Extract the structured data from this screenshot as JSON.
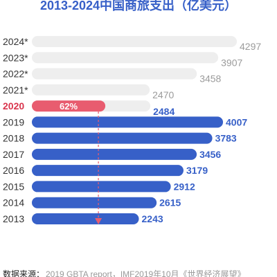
{
  "chart_data": {
    "type": "bar",
    "orientation": "horizontal",
    "title": "2013-2024中国商旅支出（亿美元）",
    "categories": [
      "2024*",
      "2023*",
      "2022*",
      "2021*",
      "2020",
      "2019",
      "2018",
      "2017",
      "2016",
      "2015",
      "2014",
      "2013"
    ],
    "values": [
      4297,
      3907,
      3458,
      2470,
      2484,
      4007,
      3783,
      3456,
      3179,
      2912,
      2615,
      2243
    ],
    "value_labels": [
      "4297",
      "3907",
      "3458",
      "2470",
      "2484",
      "4007",
      "3783",
      "3456",
      "3179",
      "2912",
      "2615",
      "2243"
    ],
    "highlight": {
      "category": "2020",
      "label": "62%",
      "share": 0.62
    },
    "grid": false,
    "legend": "none",
    "colors": {
      "forecast": "#eeeeee",
      "forecast_text": "#9b9b9b",
      "highlight": "#e85c6f",
      "highlight_label": "#d9344c",
      "actual": "#3760c8",
      "actual_text": "#3760c8",
      "axis_text": "#333333",
      "title": "#3760c8",
      "arrow": "#e85c6f"
    }
  },
  "source": {
    "label": "数据来源：",
    "text": "2019 GBTA report，IMF2019年10月《世界经济展望》"
  }
}
